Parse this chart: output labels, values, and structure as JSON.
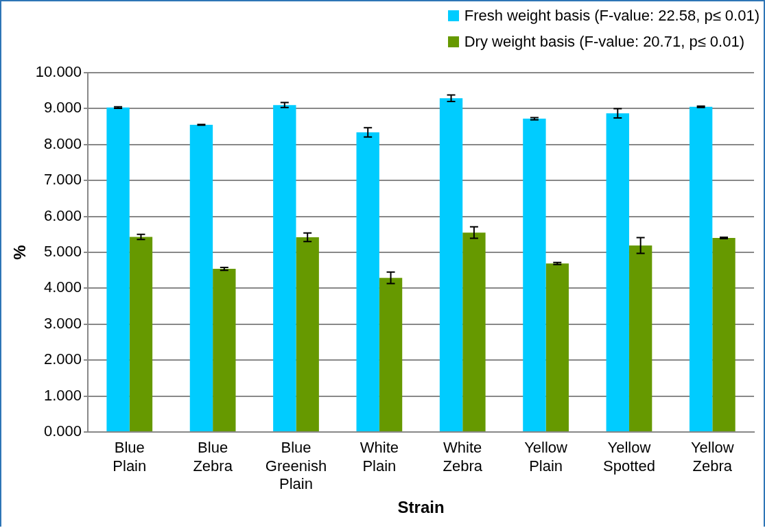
{
  "chart_data": {
    "type": "bar",
    "xlabel": "Strain",
    "ylabel": "%",
    "categories": [
      "Blue Plain",
      "Blue Zebra",
      "Blue Greenish Plain",
      "White Plain",
      "White Zebra",
      "Yellow Plain",
      "Yellow Spotted",
      "Yellow Zebra"
    ],
    "series": [
      {
        "name": "Fresh weight basis (F-value: 22.58, p≤ 0.01)",
        "color": "#00ccff",
        "values": [
          9.03,
          8.55,
          9.1,
          8.34,
          9.29,
          8.72,
          8.87,
          9.05
        ],
        "errors": [
          0.02,
          0.01,
          0.07,
          0.13,
          0.09,
          0.03,
          0.13,
          0.02
        ]
      },
      {
        "name": "Dry weight basis (F-value: 20.71, p≤ 0.01)",
        "color": "#669900",
        "values": [
          5.43,
          4.54,
          5.42,
          4.29,
          5.55,
          4.69,
          5.19,
          5.4
        ],
        "errors": [
          0.07,
          0.04,
          0.12,
          0.16,
          0.16,
          0.03,
          0.22,
          0.02
        ]
      }
    ],
    "ylim": [
      0,
      10
    ],
    "yticks": [
      {
        "value": 0,
        "label": "0.000"
      },
      {
        "value": 1,
        "label": "1.000"
      },
      {
        "value": 2,
        "label": "2.000"
      },
      {
        "value": 3,
        "label": "3.000"
      },
      {
        "value": 4,
        "label": "4.000"
      },
      {
        "value": 5,
        "label": "5.000"
      },
      {
        "value": 6,
        "label": "6.000"
      },
      {
        "value": 7,
        "label": "7.000"
      },
      {
        "value": 8,
        "label": "8.000"
      },
      {
        "value": 9,
        "label": "9.000"
      },
      {
        "value": 10,
        "label": "10.000"
      }
    ],
    "grid": "y",
    "legend": "top right"
  }
}
